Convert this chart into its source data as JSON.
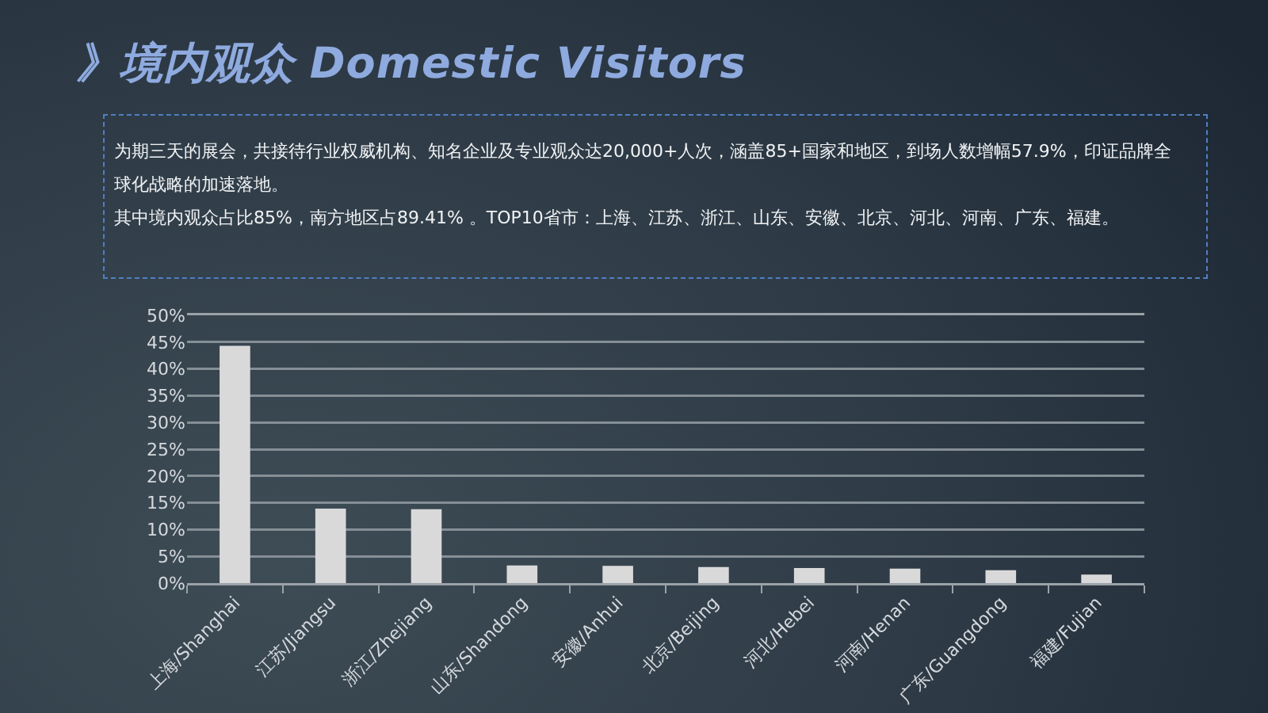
{
  "chart_data": {
    "type": "bar",
    "title": "》境内观众 Domestic Visitors",
    "annotations": [
      "为期三天的展会，共接待行业权威机构、知名企业及专业观众达20,000+人次，涵盖85+国家和地区，到场人数增幅57.9%，印证品牌全球化战略的加速落地。",
      "其中境内观众占比85%，南方地区占89.41% 。TOP10省市：上海、江苏、浙江、山东、安徽、北京、河北、河南、广东、福建。"
    ],
    "categories": [
      "上海/Shanghai",
      "江苏/Jiangsu",
      "浙江/Zhejiang",
      "山东/Shandong",
      "安徽/Anhui",
      "北京/Beijing",
      "河北/Hebei",
      "河南/Henan",
      "广东/Guangdong",
      "福建/Fujian"
    ],
    "values": [
      44.3,
      13.9,
      13.8,
      3.3,
      3.2,
      3.0,
      2.8,
      2.7,
      2.4,
      1.6
    ],
    "color": "#d9d9d9",
    "ylim": [
      0,
      50
    ],
    "yticks": [
      {
        "value": 0,
        "label": "0%"
      },
      {
        "value": 5,
        "label": "5%"
      },
      {
        "value": 10,
        "label": "10%"
      },
      {
        "value": 15,
        "label": "15%"
      },
      {
        "value": 20,
        "label": "20%"
      },
      {
        "value": 25,
        "label": "25%"
      },
      {
        "value": 30,
        "label": "30%"
      },
      {
        "value": 35,
        "label": "35%"
      },
      {
        "value": 40,
        "label": "40%"
      },
      {
        "value": 45,
        "label": "45%"
      },
      {
        "value": 50,
        "label": "50%"
      }
    ],
    "grid": "y"
  }
}
